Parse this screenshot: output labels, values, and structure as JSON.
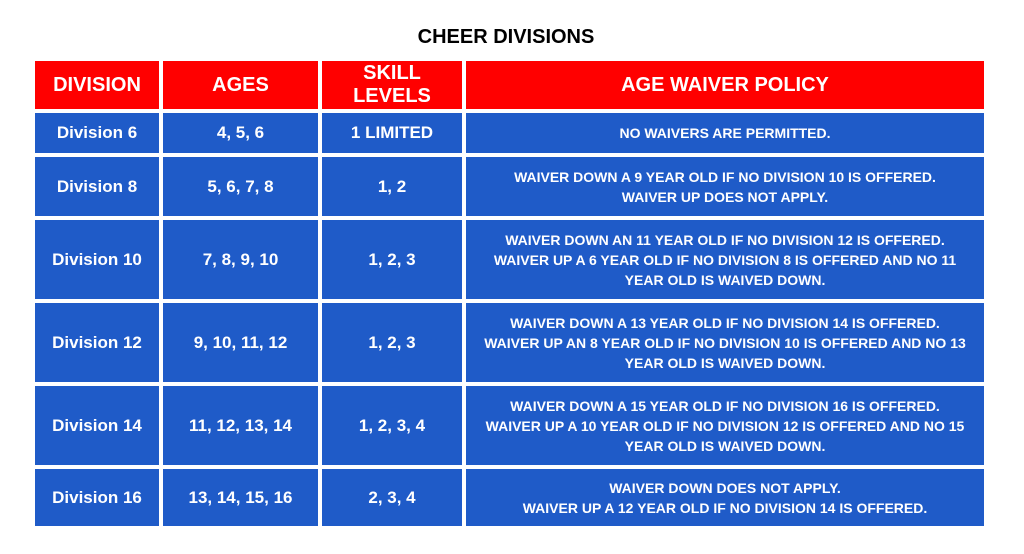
{
  "title": "CHEER DIVISIONS",
  "colors": {
    "header_bg": "#ff0000",
    "cell_bg": "#1f5bc8",
    "text": "#ffffff"
  },
  "headers": {
    "division": "DIVISION",
    "ages": "AGES",
    "skill_levels": "SKILL LEVELS",
    "policy": "AGE WAIVER POLICY"
  },
  "rows": [
    {
      "division": "Division 6",
      "ages": "4, 5, 6",
      "skills": "1 LIMITED",
      "policy": [
        "NO WAIVERS ARE PERMITTED."
      ]
    },
    {
      "division": "Division 8",
      "ages": "5, 6, 7, 8",
      "skills": "1, 2",
      "policy": [
        "WAIVER DOWN A 9 YEAR OLD IF NO DIVISION 10 IS OFFERED.",
        "WAIVER UP DOES NOT APPLY."
      ]
    },
    {
      "division": "Division 10",
      "ages": "7, 8, 9, 10",
      "skills": "1, 2, 3",
      "policy": [
        "WAIVER DOWN AN 11 YEAR OLD IF NO DIVISION 12 IS OFFERED.",
        "WAIVER UP A 6 YEAR OLD IF NO DIVISION 8 IS OFFERED AND NO 11",
        "YEAR OLD IS WAIVED DOWN."
      ]
    },
    {
      "division": "Division 12",
      "ages": "9, 10, 11, 12",
      "skills": "1, 2, 3",
      "policy": [
        "WAIVER DOWN A 13 YEAR OLD IF NO DIVISION 14 IS OFFERED.",
        "WAIVER UP AN 8 YEAR OLD IF NO DIVISION 10 IS OFFERED AND NO 13",
        "YEAR OLD IS WAIVED DOWN."
      ]
    },
    {
      "division": "Division 14",
      "ages": "11, 12, 13, 14",
      "skills": "1, 2, 3, 4",
      "policy": [
        "WAIVER DOWN A 15 YEAR OLD IF NO DIVISION 16 IS OFFERED.",
        "WAIVER UP A 10 YEAR OLD IF NO DIVISION 12 IS OFFERED AND NO 15",
        "YEAR OLD IS WAIVED DOWN."
      ]
    },
    {
      "division": "Division 16",
      "ages": "13, 14, 15, 16",
      "skills": "2, 3, 4",
      "policy": [
        "WAIVER DOWN DOES NOT APPLY.",
        "WAIVER UP A 12 YEAR OLD IF NO DIVISION 14 IS OFFERED."
      ]
    }
  ]
}
